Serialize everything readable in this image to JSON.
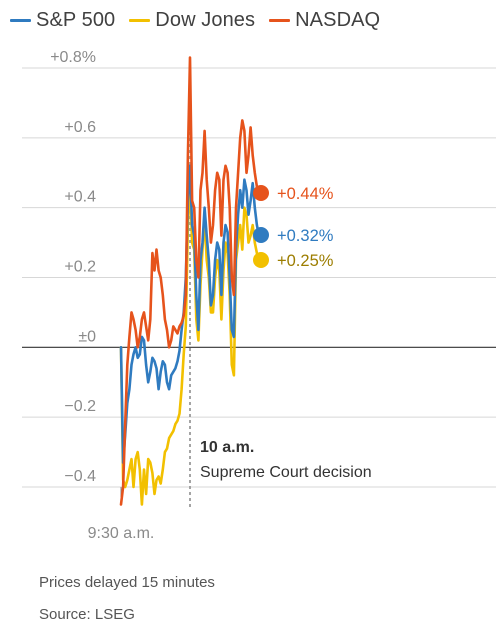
{
  "colors": {
    "sp500": "#2f7bc0",
    "dow": "#f2c000",
    "nasdaq": "#e6531c",
    "dow_label": "#9c7d00",
    "grid": "#d7d7d7",
    "zero": "#333333"
  },
  "footer": {
    "note": "Prices delayed 15 minutes",
    "source": "Source: LSEG"
  },
  "chart_data": {
    "type": "line",
    "title": "",
    "xlabel": "",
    "ylabel": "",
    "ylim": [
      -0.42,
      0.8
    ],
    "xlim": [
      0,
      129
    ],
    "y_ticks": [
      {
        "value": 0.8,
        "label": "+0.8%"
      },
      {
        "value": 0.6,
        "label": "+0.6"
      },
      {
        "value": 0.4,
        "label": "+0.4"
      },
      {
        "value": 0.2,
        "label": "+0.2"
      },
      {
        "value": 0.0,
        "label": "±0"
      },
      {
        "value": -0.2,
        "label": "−0.2"
      },
      {
        "value": -0.4,
        "label": "−0.4"
      }
    ],
    "x_tick": {
      "x": 0,
      "label": "9:30 a.m."
    },
    "annotation": {
      "x": 33,
      "title": "10 a.m.",
      "text": "Supreme Court decision"
    },
    "grid": true,
    "legend": "top",
    "series": [
      {
        "name": "S&P 500",
        "color_key": "sp500",
        "end_label": "+0.32%",
        "points": [
          [
            0,
            0
          ],
          [
            1,
            -0.33
          ],
          [
            2,
            -0.25
          ],
          [
            3,
            -0.16
          ],
          [
            4,
            -0.12
          ],
          [
            5,
            -0.05
          ],
          [
            6,
            -0.02
          ],
          [
            7,
            0.0
          ],
          [
            8,
            -0.03
          ],
          [
            9,
            -0.02
          ],
          [
            10,
            0.03
          ],
          [
            11,
            0.02
          ],
          [
            12,
            -0.05
          ],
          [
            13,
            -0.1
          ],
          [
            14,
            -0.07
          ],
          [
            15,
            -0.03
          ],
          [
            16,
            -0.04
          ],
          [
            17,
            -0.06
          ],
          [
            18,
            -0.12
          ],
          [
            19,
            -0.07
          ],
          [
            20,
            -0.04
          ],
          [
            21,
            -0.05
          ],
          [
            22,
            -0.1
          ],
          [
            23,
            -0.12
          ],
          [
            24,
            -0.08
          ],
          [
            25,
            -0.07
          ],
          [
            26,
            -0.06
          ],
          [
            27,
            -0.04
          ],
          [
            28,
            -0.01
          ],
          [
            29,
            0.05
          ],
          [
            30,
            0.1
          ],
          [
            31,
            0.2
          ],
          [
            32,
            0.42
          ],
          [
            33,
            0.52
          ],
          [
            34,
            0.35
          ],
          [
            35,
            0.32
          ],
          [
            36,
            0.15
          ],
          [
            37,
            0.05
          ],
          [
            38,
            0.25
          ],
          [
            39,
            0.3
          ],
          [
            40,
            0.4
          ],
          [
            41,
            0.32
          ],
          [
            42,
            0.25
          ],
          [
            43,
            0.12
          ],
          [
            44,
            0.15
          ],
          [
            45,
            0.25
          ],
          [
            46,
            0.3
          ],
          [
            47,
            0.28
          ],
          [
            48,
            0.15
          ],
          [
            49,
            0.3
          ],
          [
            50,
            0.35
          ],
          [
            51,
            0.33
          ],
          [
            52,
            0.2
          ],
          [
            53,
            0.05
          ],
          [
            54,
            0.03
          ],
          [
            55,
            0.28
          ],
          [
            56,
            0.38
          ],
          [
            57,
            0.45
          ],
          [
            58,
            0.4
          ],
          [
            59,
            0.48
          ],
          [
            60,
            0.45
          ],
          [
            61,
            0.38
          ],
          [
            62,
            0.42
          ],
          [
            63,
            0.47
          ],
          [
            64,
            0.4
          ],
          [
            65,
            0.35
          ],
          [
            66,
            0.32
          ]
        ]
      },
      {
        "name": "Dow Jones",
        "color_key": "dow",
        "end_label": "+0.25%",
        "points": [
          [
            0,
            0
          ],
          [
            1,
            -0.38
          ],
          [
            2,
            -0.4
          ],
          [
            3,
            -0.38
          ],
          [
            4,
            -0.35
          ],
          [
            5,
            -0.32
          ],
          [
            6,
            -0.4
          ],
          [
            7,
            -0.32
          ],
          [
            8,
            -0.3
          ],
          [
            9,
            -0.35
          ],
          [
            10,
            -0.45
          ],
          [
            11,
            -0.35
          ],
          [
            12,
            -0.42
          ],
          [
            13,
            -0.32
          ],
          [
            14,
            -0.33
          ],
          [
            15,
            -0.36
          ],
          [
            16,
            -0.42
          ],
          [
            17,
            -0.38
          ],
          [
            18,
            -0.37
          ],
          [
            19,
            -0.39
          ],
          [
            20,
            -0.35
          ],
          [
            21,
            -0.3
          ],
          [
            22,
            -0.29
          ],
          [
            23,
            -0.26
          ],
          [
            24,
            -0.25
          ],
          [
            25,
            -0.24
          ],
          [
            26,
            -0.22
          ],
          [
            27,
            -0.21
          ],
          [
            28,
            -0.19
          ],
          [
            29,
            -0.12
          ],
          [
            30,
            -0.02
          ],
          [
            31,
            0.06
          ],
          [
            32,
            0.35
          ],
          [
            33,
            0.48
          ],
          [
            34,
            0.3
          ],
          [
            35,
            0.28
          ],
          [
            36,
            0.08
          ],
          [
            37,
            0.02
          ],
          [
            38,
            0.18
          ],
          [
            39,
            0.28
          ],
          [
            40,
            0.37
          ],
          [
            41,
            0.25
          ],
          [
            42,
            0.2
          ],
          [
            43,
            0.1
          ],
          [
            44,
            0.1
          ],
          [
            45,
            0.2
          ],
          [
            46,
            0.25
          ],
          [
            47,
            0.22
          ],
          [
            48,
            0.08
          ],
          [
            49,
            0.22
          ],
          [
            50,
            0.3
          ],
          [
            51,
            0.27
          ],
          [
            52,
            0.15
          ],
          [
            53,
            -0.05
          ],
          [
            54,
            -0.08
          ],
          [
            55,
            0.25
          ],
          [
            56,
            0.3
          ],
          [
            57,
            0.35
          ],
          [
            58,
            0.28
          ],
          [
            59,
            0.4
          ],
          [
            60,
            0.38
          ],
          [
            61,
            0.3
          ],
          [
            62,
            0.32
          ],
          [
            63,
            0.35
          ],
          [
            64,
            0.3
          ],
          [
            65,
            0.27
          ],
          [
            66,
            0.25
          ]
        ]
      },
      {
        "name": "NASDAQ",
        "color_key": "nasdaq",
        "end_label": "+0.44%",
        "points": [
          [
            0,
            -0.45
          ],
          [
            1,
            -0.4
          ],
          [
            2,
            -0.22
          ],
          [
            3,
            -0.05
          ],
          [
            4,
            0.03
          ],
          [
            5,
            0.1
          ],
          [
            6,
            0.08
          ],
          [
            7,
            0.05
          ],
          [
            8,
            0.0
          ],
          [
            9,
            0.03
          ],
          [
            10,
            0.08
          ],
          [
            11,
            0.1
          ],
          [
            12,
            0.06
          ],
          [
            13,
            0.02
          ],
          [
            14,
            0.08
          ],
          [
            15,
            0.27
          ],
          [
            16,
            0.22
          ],
          [
            17,
            0.28
          ],
          [
            18,
            0.22
          ],
          [
            19,
            0.2
          ],
          [
            20,
            0.15
          ],
          [
            21,
            0.08
          ],
          [
            22,
            0.05
          ],
          [
            23,
            0.0
          ],
          [
            24,
            0.02
          ],
          [
            25,
            0.06
          ],
          [
            26,
            0.05
          ],
          [
            27,
            0.04
          ],
          [
            28,
            0.06
          ],
          [
            29,
            0.07
          ],
          [
            30,
            0.09
          ],
          [
            31,
            0.15
          ],
          [
            32,
            0.55
          ],
          [
            33,
            0.83
          ],
          [
            34,
            0.42
          ],
          [
            35,
            0.4
          ],
          [
            36,
            0.25
          ],
          [
            37,
            0.2
          ],
          [
            38,
            0.45
          ],
          [
            39,
            0.5
          ],
          [
            40,
            0.62
          ],
          [
            41,
            0.48
          ],
          [
            42,
            0.4
          ],
          [
            43,
            0.3
          ],
          [
            44,
            0.35
          ],
          [
            45,
            0.45
          ],
          [
            46,
            0.5
          ],
          [
            47,
            0.48
          ],
          [
            48,
            0.32
          ],
          [
            49,
            0.48
          ],
          [
            50,
            0.52
          ],
          [
            51,
            0.5
          ],
          [
            52,
            0.4
          ],
          [
            53,
            0.2
          ],
          [
            54,
            0.15
          ],
          [
            55,
            0.4
          ],
          [
            56,
            0.5
          ],
          [
            57,
            0.6
          ],
          [
            58,
            0.65
          ],
          [
            59,
            0.62
          ],
          [
            60,
            0.5
          ],
          [
            61,
            0.55
          ],
          [
            62,
            0.63
          ],
          [
            63,
            0.55
          ],
          [
            64,
            0.5
          ],
          [
            65,
            0.46
          ],
          [
            66,
            0.44
          ]
        ]
      }
    ]
  }
}
